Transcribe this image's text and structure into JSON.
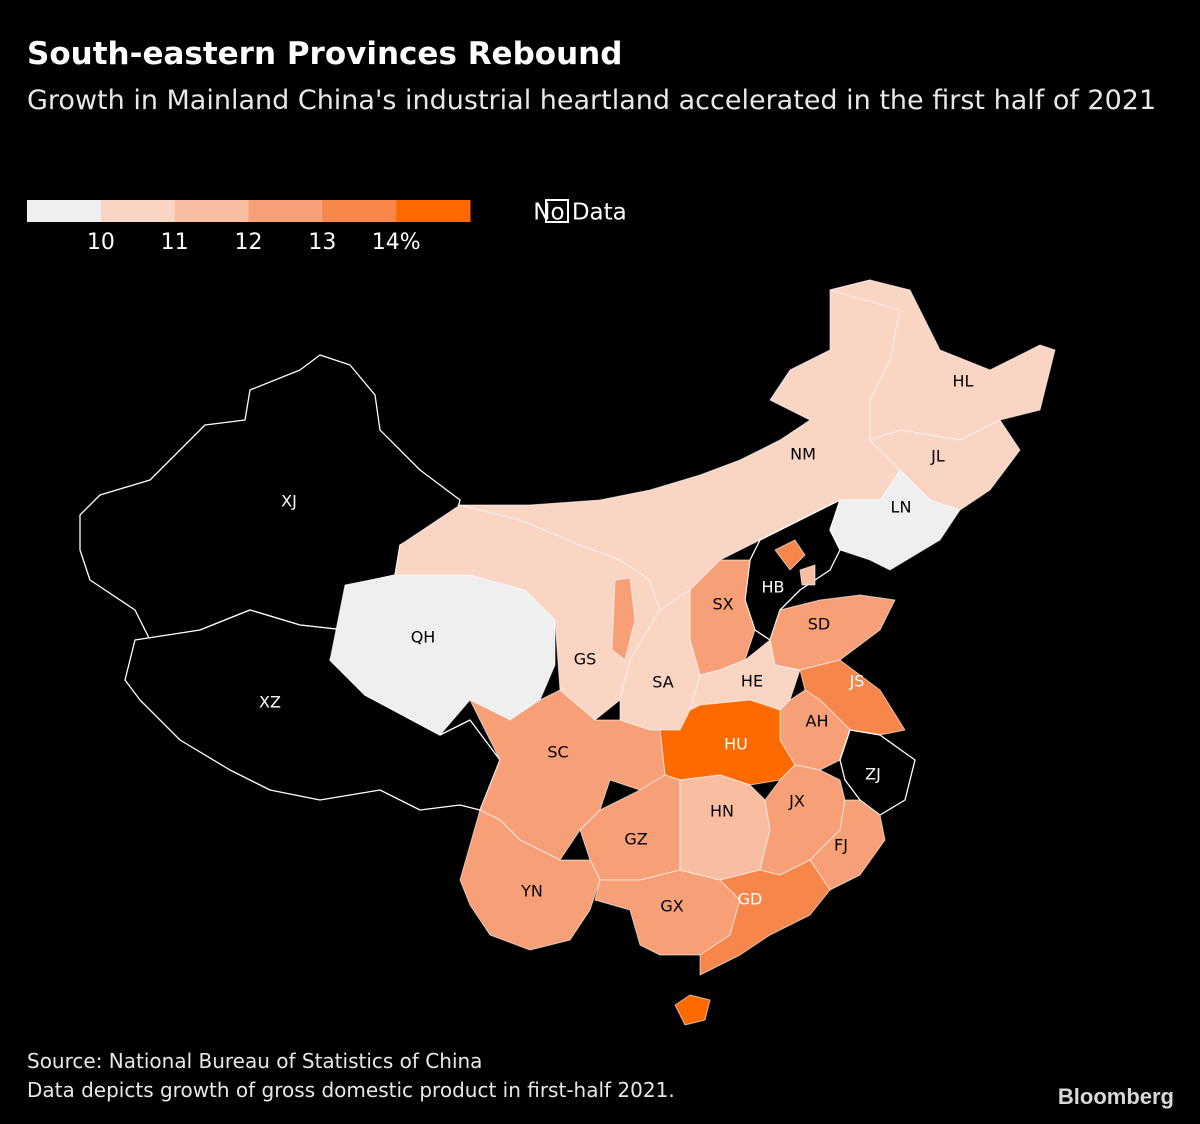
{
  "title": "South-eastern Provinces Rebound",
  "subtitle": "Growth in Mainland China's industrial heartland accelerated in the first half of 2021",
  "legend": {
    "range": [
      9,
      15
    ],
    "colors": [
      "#efefef",
      "#fbd5c3",
      "#f9bea2",
      "#f7a077",
      "#f7864b",
      "#ff6a00"
    ],
    "ticks": [
      10,
      11,
      12,
      13,
      {
        "value": 14,
        "label": "14%"
      }
    ],
    "no_data": "No Data"
  },
  "provinces": [
    {
      "label": "XJ",
      "color": "#000000"
    },
    {
      "label": "XZ",
      "color": "#000000"
    },
    {
      "label": "QH",
      "color": "#efefef"
    },
    {
      "label": "GS",
      "color": "#fbd5c3"
    },
    {
      "label": "NM",
      "color": "#fbd5c3"
    },
    {
      "label": "HL",
      "color": "#fbd5c3"
    },
    {
      "label": "JL",
      "color": "#fbd5c3"
    },
    {
      "label": "LN",
      "color": "#efefef"
    },
    {
      "label": "HB",
      "color": "#000000"
    },
    {
      "label": "SX",
      "color": "#f7a077"
    },
    {
      "label": "SA",
      "color": "#fbd5c3"
    },
    {
      "label": "SD",
      "color": "#f7a077"
    },
    {
      "label": "HE",
      "color": "#fbd5c3"
    },
    {
      "label": "JS",
      "color": "#f7864b"
    },
    {
      "label": "AH",
      "color": "#f7a077"
    },
    {
      "label": "ZJ",
      "color": "#000000"
    },
    {
      "label": "HU",
      "color": "#ff6a00"
    },
    {
      "label": "SC",
      "color": "#f7a077"
    },
    {
      "label": "GZ",
      "color": "#f7a077"
    },
    {
      "label": "YN",
      "color": "#f7a077"
    },
    {
      "label": "GX",
      "color": "#f7a077"
    },
    {
      "label": "HN",
      "color": "#f9bea2"
    },
    {
      "label": "JX",
      "color": "#f7a077"
    },
    {
      "label": "FJ",
      "color": "#f7a077"
    },
    {
      "label": "GD",
      "color": "#f7864b"
    },
    {
      "label": null,
      "color": "#ff6a00"
    },
    {
      "label": null,
      "color": "#f7864b"
    },
    {
      "label": null,
      "color": "#f9bea2"
    },
    {
      "label": null,
      "color": "#f7a077"
    }
  ],
  "source": "Source: National Bureau of Statistics of China",
  "note": "Data depicts growth of gross domestic product in first-half 2021.",
  "brand": "Bloomberg"
}
